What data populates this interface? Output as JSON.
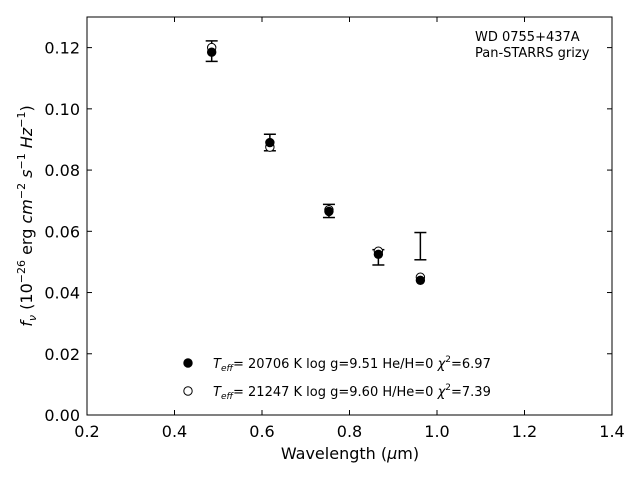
{
  "chart_data": {
    "type": "scatter",
    "title": "",
    "annotation_lines": [
      "WD 0755+437A",
      "Pan-STARRS grizy"
    ],
    "xlabel": {
      "main": "Wavelength (",
      "mu": "μ",
      "unit": "m)"
    },
    "ylabel": {
      "f": "f",
      "nu": "ν",
      "rest": " (10",
      "exp1": "−26",
      "erg": " erg ",
      "cm": "cm",
      "exp2": "−2",
      "s": " s",
      "exp3": "−1",
      "hz": " Hz",
      "exp4": "−1",
      "close": ")"
    },
    "xlim": [
      0.2,
      1.4
    ],
    "ylim": [
      0.0,
      0.13
    ],
    "x_ticks": [
      0.2,
      0.4,
      0.6,
      0.8,
      1.0,
      1.2,
      1.4
    ],
    "x_tick_labels": [
      "0.2",
      "0.4",
      "0.6",
      "0.8",
      "1.0",
      "1.2",
      "1.4"
    ],
    "y_ticks": [
      0.0,
      0.02,
      0.04,
      0.06,
      0.08,
      0.1,
      0.12
    ],
    "y_tick_labels": [
      "0.00",
      "0.02",
      "0.04",
      "0.06",
      "0.08",
      "0.10",
      "0.12"
    ],
    "grid": false,
    "legend_position": "bottom-left",
    "observed": {
      "name": "",
      "x": [
        0.485,
        0.618,
        0.753,
        0.866,
        0.962
      ],
      "y": [
        0.1185,
        0.089,
        0.0665,
        0.0525,
        0.0553
      ],
      "err_low": [
        0.003,
        0.0027,
        0.002,
        0.0035,
        0.0046
      ],
      "err_high": [
        0.0037,
        0.0027,
        0.0023,
        0.0015,
        0.0043
      ]
    },
    "series": [
      {
        "id": "he",
        "marker": "filled",
        "legend": {
          "teff_pre": "T",
          "teff_sub": "eff",
          "text": "= 20706 K  log g=9.51  He/H=0  ",
          "chi": "χ",
          "chi_sup": "2",
          "chi_val": "=6.97"
        },
        "x": [
          0.485,
          0.618,
          0.753,
          0.866,
          0.962
        ],
        "y": [
          0.1185,
          0.089,
          0.0665,
          0.0525,
          0.044
        ]
      },
      {
        "id": "h",
        "marker": "open",
        "legend": {
          "teff_pre": "T",
          "teff_sub": "eff",
          "text": "= 21247 K  log g=9.60  H/He=0  ",
          "chi": "χ",
          "chi_sup": "2",
          "chi_val": "=7.39"
        },
        "x": [
          0.485,
          0.618,
          0.753,
          0.866,
          0.962
        ],
        "y": [
          0.12,
          0.0875,
          0.067,
          0.0535,
          0.045
        ]
      }
    ]
  }
}
